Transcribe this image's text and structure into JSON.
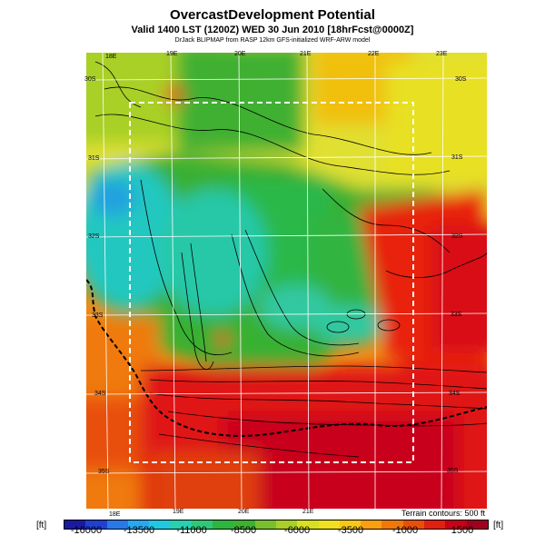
{
  "header": {
    "title": "OvercastDevelopment Potential",
    "subtitle": "Valid 1400 LST (1200Z) WED 30 Jun 2010 [18hrFcst@0000Z]",
    "credit": "DrJack BLIPMAP from RASP 12km GFS-initialized WRF-ARW model"
  },
  "grid": {
    "lon_top": [
      "18E",
      "19E",
      "20E",
      "21E",
      "22E",
      "23E"
    ],
    "lon_bottom": [
      "18E",
      "19E",
      "20E",
      "21E"
    ],
    "lat_left": [
      "30S",
      "31S",
      "32S",
      "33S",
      "34S",
      "35S"
    ],
    "lat_right": [
      "30S",
      "31S",
      "32S",
      "33S",
      "34S",
      "35S"
    ]
  },
  "map_info": {
    "terrain_note": "Terrain contours: 500 ft",
    "colors": {
      "low": "#0a1aa0",
      "mid_low": "#22c4c4",
      "mid": "#32b232",
      "mid_high": "#e8e820",
      "high": "#ff7a00",
      "max": "#e81020"
    }
  },
  "legend": {
    "unit_left": "[ft]",
    "unit_right": "[ft]",
    "ticks": [
      "-16000",
      "-13500",
      "-11000",
      "-8500",
      "-6000",
      "-3500",
      "-1000",
      "1500"
    ],
    "colors": [
      "#1a1aa0",
      "#2040d0",
      "#2878e8",
      "#28a8f0",
      "#20c8e0",
      "#28d0b0",
      "#30c878",
      "#30b440",
      "#40b030",
      "#78c030",
      "#a8d028",
      "#d8e020",
      "#f0e020",
      "#f8c818",
      "#f8a010",
      "#f07808",
      "#e85008",
      "#e02010",
      "#c80018",
      "#a00020"
    ]
  }
}
